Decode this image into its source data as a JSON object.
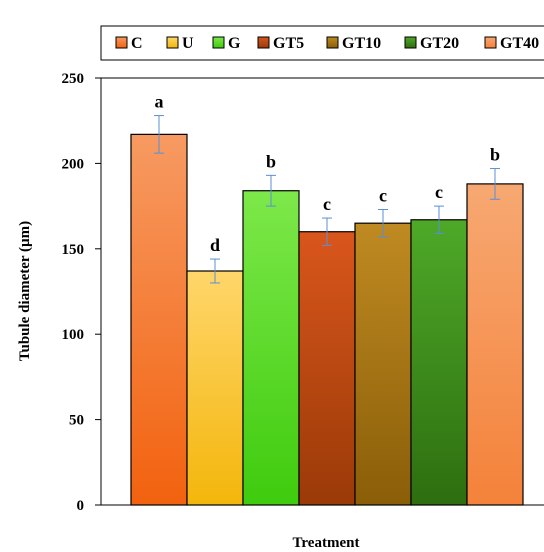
{
  "chart_data": {
    "type": "bar",
    "title": "",
    "xlabel": "Treatment",
    "ylabel": "Tubule diameter (µm)",
    "ylim": [
      0,
      250
    ],
    "yticks": [
      0,
      50,
      100,
      150,
      200,
      250
    ],
    "grid": false,
    "legend_position": "top",
    "categories": [
      "C",
      "U",
      "G",
      "GT5",
      "GT10",
      "GT20",
      "GT40"
    ],
    "values": [
      217,
      137,
      184,
      160,
      165,
      167,
      188
    ],
    "errors": [
      11,
      7,
      9,
      8,
      8,
      8,
      9
    ],
    "significance_letters": [
      "a",
      "d",
      "b",
      "c",
      "c",
      "c",
      "b"
    ],
    "colors": [
      {
        "top": "#f79a62",
        "bottom": "#f2620f"
      },
      {
        "top": "#ffd66b",
        "bottom": "#f3b60b"
      },
      {
        "top": "#7de84a",
        "bottom": "#3fcb0e"
      },
      {
        "top": "#d9561c",
        "bottom": "#9a3a08"
      },
      {
        "top": "#bf8a22",
        "bottom": "#8a5e08"
      },
      {
        "top": "#4ea928",
        "bottom": "#2d6e10"
      },
      {
        "top": "#f7a872",
        "bottom": "#f4823a"
      }
    ],
    "error_bar_color": "#5b8fd6"
  }
}
